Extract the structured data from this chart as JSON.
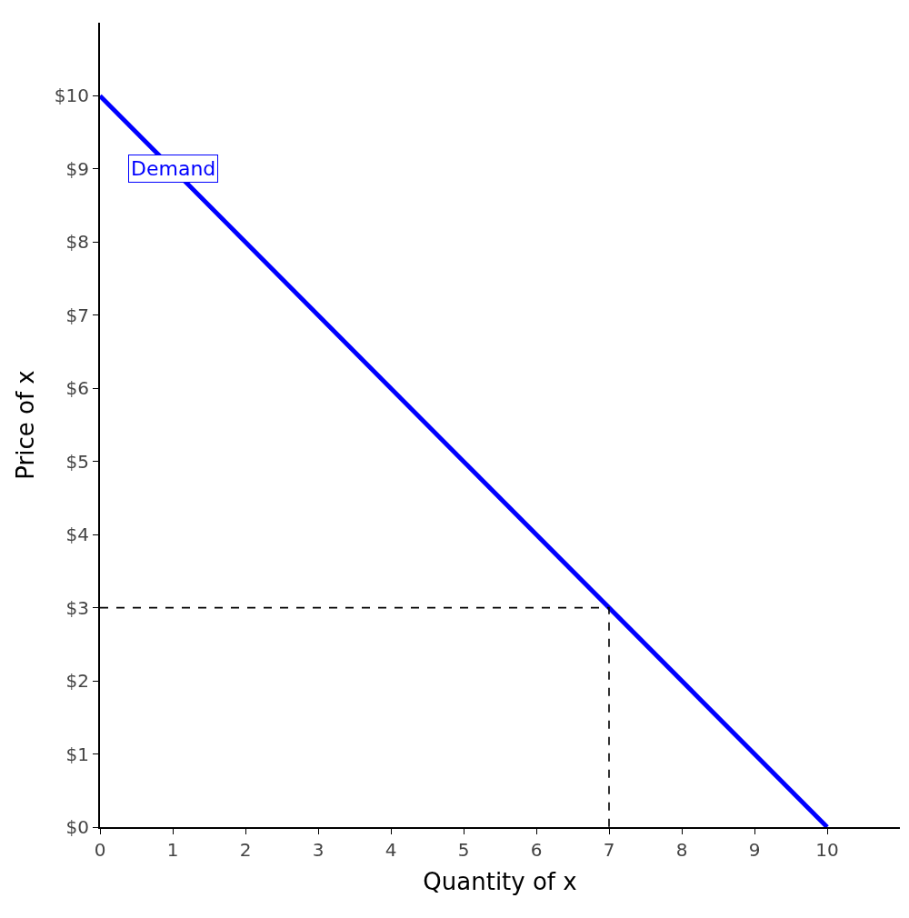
{
  "chart_data": {
    "type": "line",
    "xlabel": "Quantity of x",
    "ylabel": "Price of x",
    "series": [
      {
        "x": [
          0,
          10
        ],
        "values": [
          10,
          0
        ],
        "color": "#0000ff",
        "line_style": "solid"
      },
      {
        "x": [
          0,
          7,
          7
        ],
        "values": [
          3,
          3,
          0
        ],
        "color": "#000000",
        "line_style": "dashed"
      }
    ],
    "xlim": [
      0,
      11
    ],
    "ylim": [
      0,
      11
    ],
    "xticks": [
      0,
      1,
      2,
      3,
      4,
      5,
      6,
      7,
      8,
      9,
      10
    ],
    "yticks": [
      {
        "value": 0,
        "label": "$0"
      },
      {
        "value": 1,
        "label": "$1"
      },
      {
        "value": 2,
        "label": "$2"
      },
      {
        "value": 3,
        "label": "$3"
      },
      {
        "value": 4,
        "label": "$4"
      },
      {
        "value": 5,
        "label": "$5"
      },
      {
        "value": 6,
        "label": "$6"
      },
      {
        "value": 7,
        "label": "$7"
      },
      {
        "value": 8,
        "label": "$8"
      },
      {
        "value": 9,
        "label": "$9"
      },
      {
        "value": 10,
        "label": "$10"
      }
    ],
    "annotations": [
      {
        "text": "Demand",
        "x": 1,
        "y": 9
      }
    ],
    "marker": "none"
  }
}
